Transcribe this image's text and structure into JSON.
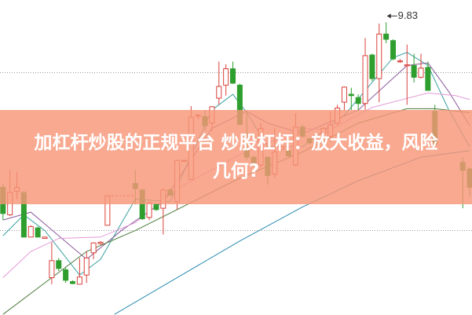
{
  "banner": {
    "line1": "加杠杆炒股的正规平台 炒股杠杆：放大收益，风险",
    "line2": "几何?"
  },
  "chart_data": {
    "type": "candlestick",
    "ylim": [
      5.36,
      10.17
    ],
    "xlim": [
      0,
      67
    ],
    "grid": "horizontal dotted",
    "gridlines": [
      9.06,
      6.65
    ],
    "colors": {
      "up": "#d9413a",
      "down": "#2e9e2e",
      "banner": "#f7967a"
    },
    "max_annotation": {
      "label": "9.83",
      "day": 55,
      "value": 9.83
    },
    "candles": [
      {
        "day": 0,
        "o": 7.31,
        "c": 6.91,
        "h": 7.37,
        "l": 6.81
      },
      {
        "day": 1,
        "o": 6.89,
        "c": 7.23,
        "h": 7.57,
        "l": 6.87
      },
      {
        "day": 2,
        "o": 7.25,
        "c": 7.31,
        "h": 7.55,
        "l": 7.13
      },
      {
        "day": 3,
        "o": 7.23,
        "c": 6.55,
        "h": 7.25,
        "l": 6.55
      },
      {
        "day": 4,
        "o": 6.55,
        "c": 6.71,
        "h": 6.73,
        "l": 6.55
      },
      {
        "day": 5,
        "o": 6.69,
        "c": 6.55,
        "h": 6.71,
        "l": 6.55
      },
      {
        "day": 6,
        "o": 6.53,
        "c": 6.55,
        "h": 6.55,
        "l": 6.53
      },
      {
        "day": 7,
        "o": 5.93,
        "c": 6.19,
        "h": 6.47,
        "l": 5.83
      },
      {
        "day": 8,
        "o": 6.19,
        "c": 6.07,
        "h": 6.23,
        "l": 6.03
      },
      {
        "day": 9,
        "o": 6.05,
        "c": 5.89,
        "h": 6.09,
        "l": 5.85
      },
      {
        "day": 10,
        "o": 5.87,
        "c": 5.84,
        "h": 5.89,
        "l": 5.83
      },
      {
        "day": 11,
        "o": 5.83,
        "c": 5.94,
        "h": 6.23,
        "l": 5.83
      },
      {
        "day": 12,
        "o": 5.97,
        "c": 6.23,
        "h": 6.33,
        "l": 5.85
      },
      {
        "day": 13,
        "o": 6.31,
        "c": 6.46,
        "h": 6.47,
        "l": 6.21
      },
      {
        "day": 14,
        "o": 6.45,
        "c": 6.47,
        "h": 6.49,
        "l": 6.43
      },
      {
        "day": 15,
        "o": 6.73,
        "c": 7.18,
        "h": 7.19,
        "l": 6.73
      },
      {
        "day": 19,
        "o": 7.37,
        "c": 7.29,
        "h": 7.57,
        "l": 7.05
      },
      {
        "day": 20,
        "o": 7.27,
        "c": 6.83,
        "h": 7.29,
        "l": 6.81
      },
      {
        "day": 21,
        "o": 6.85,
        "c": 7.07,
        "h": 7.09,
        "l": 6.81
      },
      {
        "day": 22,
        "o": 7.05,
        "c": 6.97,
        "h": 7.07,
        "l": 6.95
      },
      {
        "day": 23,
        "o": 6.99,
        "c": 7.27,
        "h": 7.29,
        "l": 6.59
      },
      {
        "day": 24,
        "o": 7.27,
        "c": 7.19,
        "h": 7.29,
        "l": 7.17
      },
      {
        "day": 25,
        "o": 7.09,
        "c": 7.72,
        "h": 7.72,
        "l": 6.97
      },
      {
        "day": 26,
        "o": 7.72,
        "c": 7.72,
        "h": 7.72,
        "l": 7.72
      },
      {
        "day": 27,
        "o": 7.43,
        "c": 8.38,
        "h": 8.55,
        "l": 7.43
      },
      {
        "day": 28,
        "o": 8.4,
        "c": 8.41,
        "h": 8.43,
        "l": 8.35
      },
      {
        "day": 29,
        "o": 8.39,
        "c": 8.25,
        "h": 8.49,
        "l": 8.17
      },
      {
        "day": 30,
        "o": 8.29,
        "c": 8.54,
        "h": 8.55,
        "l": 8.17
      },
      {
        "day": 31,
        "o": 8.67,
        "c": 8.85,
        "h": 9.23,
        "l": 8.57
      },
      {
        "day": 32,
        "o": 8.87,
        "c": 9.12,
        "h": 9.19,
        "l": 8.71
      },
      {
        "day": 33,
        "o": 9.12,
        "c": 8.9,
        "h": 9.23,
        "l": 8.89
      },
      {
        "day": 34,
        "o": 8.87,
        "c": 8.27,
        "h": 8.89,
        "l": 8.27
      },
      {
        "day": 35,
        "o": 7.87,
        "c": 7.77,
        "h": 8.47,
        "l": 7.73
      },
      {
        "day": 36,
        "o": 7.77,
        "c": 7.65,
        "h": 7.79,
        "l": 7.63
      },
      {
        "day": 37,
        "o": 7.65,
        "c": 8.21,
        "h": 8.29,
        "l": 7.61
      },
      {
        "day": 38,
        "o": 7.77,
        "c": 7.49,
        "h": 7.77,
        "l": 7.35
      },
      {
        "day": 39,
        "o": 7.51,
        "c": 7.85,
        "h": 8.21,
        "l": 7.45
      },
      {
        "day": 40,
        "o": 7.89,
        "c": 7.93,
        "h": 7.95,
        "l": 7.87
      },
      {
        "day": 41,
        "o": 7.87,
        "c": 7.79,
        "h": 7.89,
        "l": 7.77
      },
      {
        "day": 42,
        "o": 7.65,
        "c": 8.23,
        "h": 8.44,
        "l": 7.63
      },
      {
        "day": 43,
        "o": 8.23,
        "c": 8.09,
        "h": 8.27,
        "l": 8.07
      },
      {
        "day": 44,
        "o": 8.05,
        "c": 7.99,
        "h": 8.07,
        "l": 7.97
      },
      {
        "day": 45,
        "o": 8.01,
        "c": 8.02,
        "h": 8.03,
        "l": 7.99
      },
      {
        "day": 46,
        "o": 8.13,
        "c": 8.21,
        "h": 8.23,
        "l": 8.11
      },
      {
        "day": 47,
        "o": 8.09,
        "c": 8.26,
        "h": 8.47,
        "l": 8.01
      },
      {
        "day": 48,
        "o": 8.29,
        "c": 8.52,
        "h": 8.57,
        "l": 8.25
      },
      {
        "day": 49,
        "o": 8.61,
        "c": 8.84,
        "h": 8.85,
        "l": 8.49
      },
      {
        "day": 50,
        "o": 8.73,
        "c": 8.71,
        "h": 8.83,
        "l": 8.49
      },
      {
        "day": 51,
        "o": 8.68,
        "c": 8.59,
        "h": 8.73,
        "l": 8.49
      },
      {
        "day": 52,
        "o": 8.59,
        "c": 9.32,
        "h": 9.59,
        "l": 8.49
      },
      {
        "day": 53,
        "o": 9.33,
        "c": 8.97,
        "h": 9.35,
        "l": 8.93
      },
      {
        "day": 54,
        "o": 8.97,
        "c": 9.65,
        "h": 9.81,
        "l": 8.61
      },
      {
        "day": 55,
        "o": 9.65,
        "c": 9.57,
        "h": 9.83,
        "l": 9.51
      },
      {
        "day": 56,
        "o": 9.55,
        "c": 9.27,
        "h": 9.57,
        "l": 9.25
      },
      {
        "day": 57,
        "o": 9.24,
        "c": 9.24,
        "h": 9.27,
        "l": 9.21
      },
      {
        "day": 58,
        "o": 9.18,
        "c": 9.18,
        "h": 9.49,
        "l": 8.57
      },
      {
        "day": 59,
        "o": 9.17,
        "c": 8.99,
        "h": 9.35,
        "l": 8.91
      },
      {
        "day": 60,
        "o": 8.99,
        "c": 9.13,
        "h": 9.35,
        "l": 8.97
      },
      {
        "day": 61,
        "o": 9.14,
        "c": 8.79,
        "h": 9.23,
        "l": 8.79
      },
      {
        "day": 62,
        "o": 8.47,
        "c": 7.97,
        "h": 8.57,
        "l": 7.93
      },
      {
        "day": 66,
        "o": 7.69,
        "c": 7.57,
        "h": 7.77,
        "l": 6.99
      },
      {
        "day": 67,
        "o": 7.59,
        "c": 7.31,
        "h": 7.61,
        "l": 7.17
      }
    ],
    "lines": [
      {
        "color": "#3aa0a0",
        "points": [
          [
            0,
            6.57
          ],
          [
            3,
            6.89
          ],
          [
            6,
            6.65
          ],
          [
            11,
            5.97
          ],
          [
            14,
            6.21
          ],
          [
            19,
            7.13
          ],
          [
            24,
            7.09
          ],
          [
            30,
            8.49
          ],
          [
            33,
            8.73
          ],
          [
            35,
            8.45
          ],
          [
            38,
            7.93
          ],
          [
            43,
            7.93
          ],
          [
            49,
            8.41
          ],
          [
            56,
            9.29
          ],
          [
            58,
            9.37
          ],
          [
            61,
            9.17
          ],
          [
            64,
            8.49
          ],
          [
            67,
            7.93
          ]
        ]
      },
      {
        "color": "#8a5a9a",
        "points": [
          [
            0,
            6.81
          ],
          [
            4,
            6.93
          ],
          [
            8,
            6.57
          ],
          [
            12,
            6.21
          ],
          [
            17,
            6.65
          ],
          [
            23,
            7.09
          ],
          [
            30,
            8.21
          ],
          [
            35,
            8.47
          ],
          [
            38,
            8.29
          ],
          [
            43,
            8.13
          ],
          [
            51,
            8.49
          ],
          [
            58,
            9.17
          ],
          [
            61,
            9.21
          ],
          [
            64,
            8.77
          ],
          [
            67,
            8.25
          ]
        ]
      },
      {
        "color": "#e49ad8",
        "points": [
          [
            0,
            5.93
          ],
          [
            4,
            6.33
          ],
          [
            8,
            6.53
          ],
          [
            14,
            6.55
          ],
          [
            19,
            6.77
          ],
          [
            25,
            7.29
          ],
          [
            34,
            7.81
          ],
          [
            43,
            8.21
          ],
          [
            47,
            8.19
          ],
          [
            53,
            8.53
          ],
          [
            61,
            8.75
          ],
          [
            65,
            8.71
          ],
          [
            67,
            8.65
          ]
        ]
      },
      {
        "color": "#4a7a3a",
        "points": [
          [
            0,
            5.37
          ],
          [
            6,
            5.85
          ],
          [
            12,
            6.33
          ],
          [
            19,
            6.65
          ],
          [
            25,
            6.97
          ],
          [
            34,
            7.45
          ],
          [
            43,
            7.85
          ],
          [
            51,
            8.29
          ],
          [
            58,
            8.51
          ],
          [
            62,
            8.51
          ],
          [
            67,
            8.45
          ]
        ]
      },
      {
        "color": "#2a8ab0",
        "points": [
          [
            16,
            5.37
          ],
          [
            25,
            5.93
          ],
          [
            34,
            6.49
          ],
          [
            43,
            7.01
          ],
          [
            51,
            7.41
          ],
          [
            60,
            7.77
          ],
          [
            67,
            7.87
          ]
        ]
      }
    ],
    "dashed_levels": [
      {
        "from": 15,
        "to": 19,
        "value": 7.18,
        "color": "#d9413a"
      },
      {
        "from": 25,
        "to": 27,
        "value": 7.72,
        "color": "#d9413a"
      }
    ]
  }
}
